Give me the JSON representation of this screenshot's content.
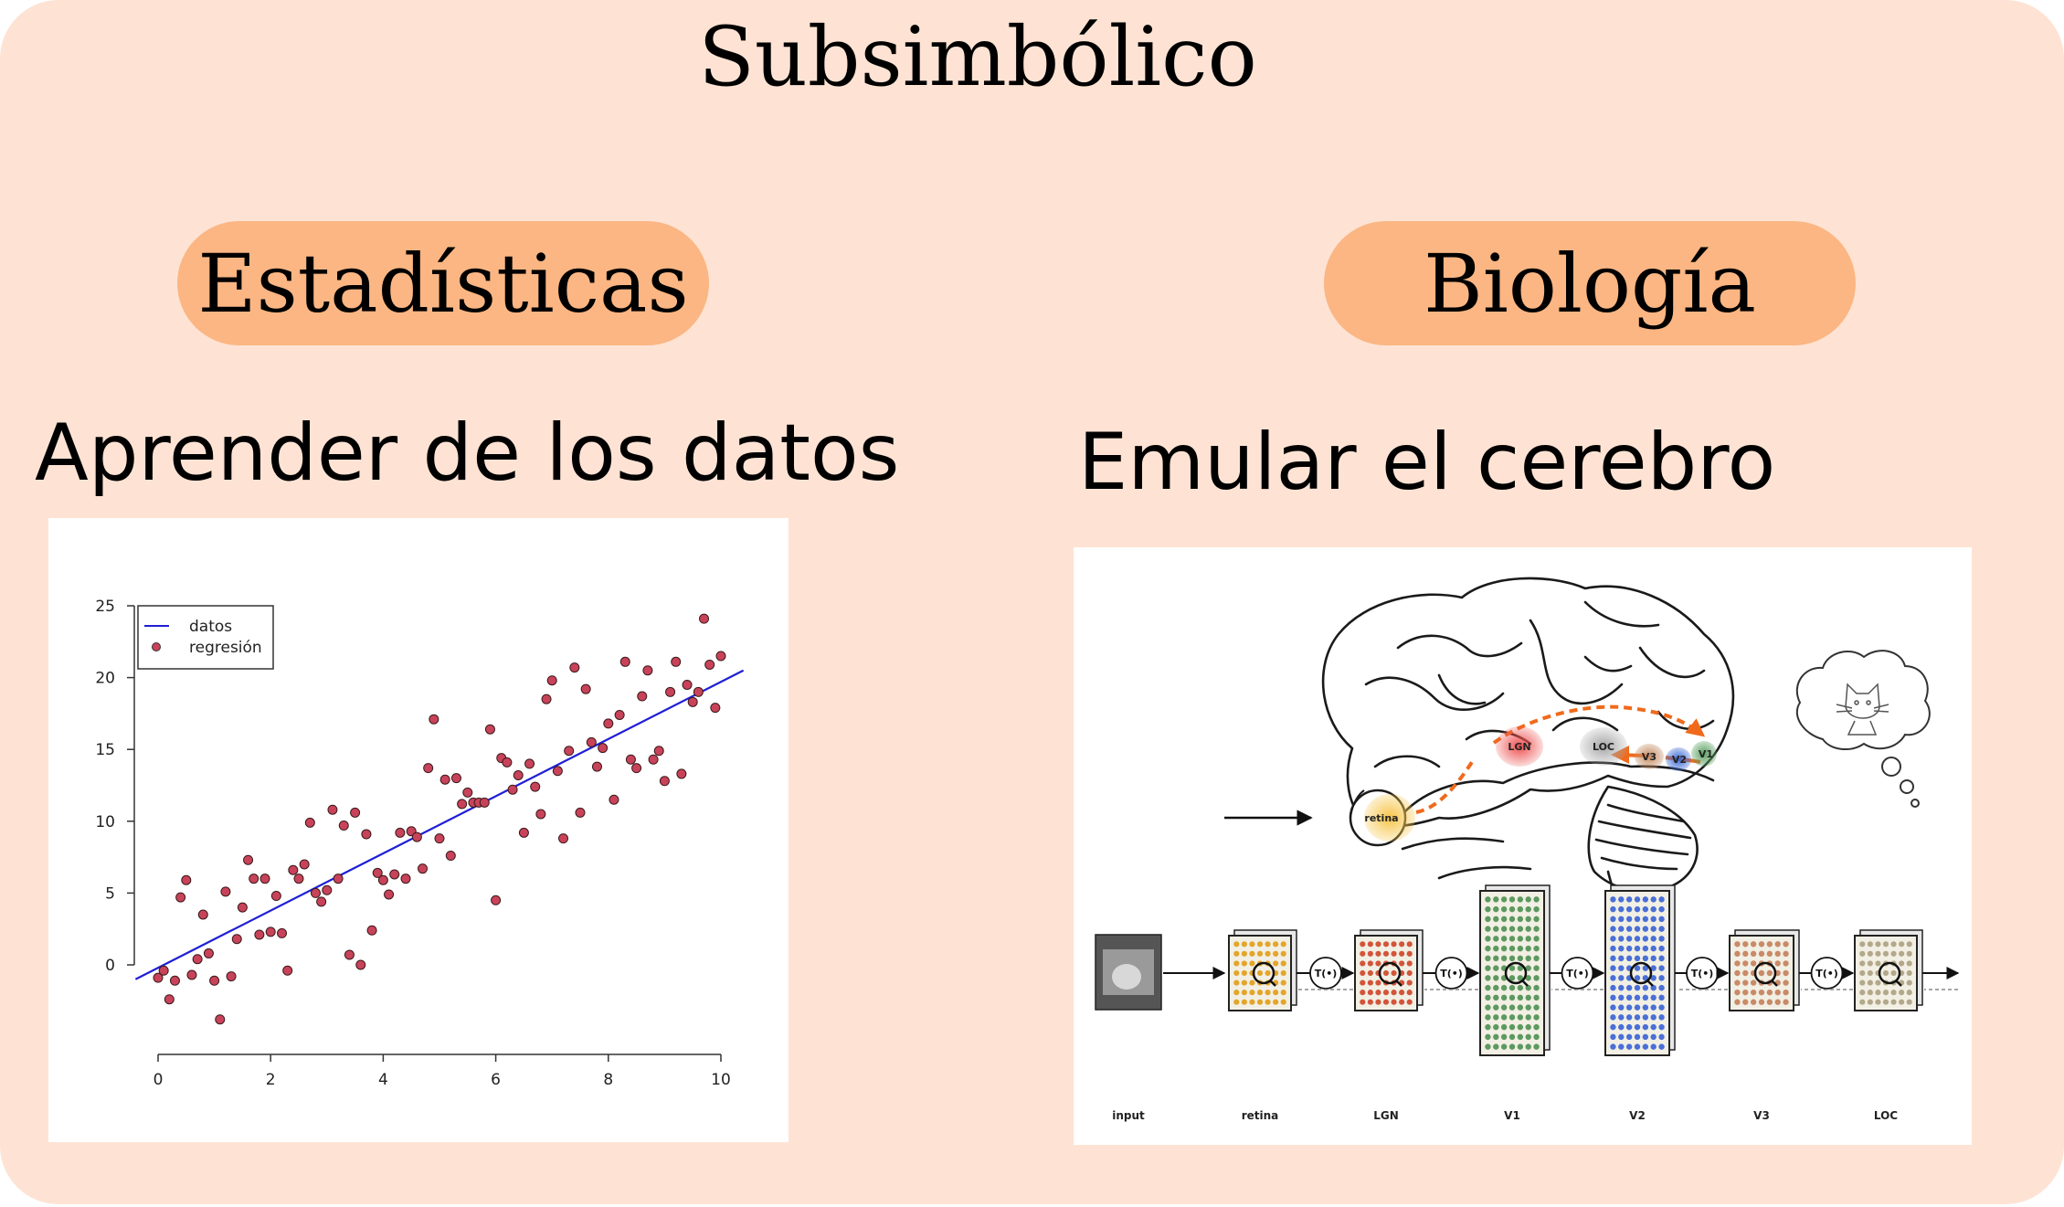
{
  "title": "Subsimbólico",
  "left": {
    "pill": "Estadísticas",
    "subtitle": "Aprender de los datos",
    "chart": {
      "legend": {
        "line": "datos",
        "points": "regresión"
      },
      "x_ticks": [
        "0",
        "2",
        "4",
        "6",
        "8",
        "10"
      ],
      "y_ticks": [
        "0",
        "5",
        "10",
        "15",
        "20",
        "25"
      ]
    }
  },
  "right": {
    "pill": "Biología",
    "subtitle": "Emular el cerebro",
    "brain_labels": [
      "retina",
      "LGN",
      "LOC",
      "V3",
      "V2",
      "V1"
    ],
    "op_label": "T(•)",
    "stage_labels": [
      "input",
      "retina",
      "LGN",
      "V1",
      "V2",
      "V3",
      "LOC"
    ]
  },
  "chart_data": {
    "type": "scatter",
    "xlim": [
      0,
      10
    ],
    "ylim": [
      -4,
      25
    ],
    "x_ticks": [
      0,
      2,
      4,
      6,
      8,
      10
    ],
    "y_ticks": [
      0,
      5,
      10,
      15,
      20,
      25
    ],
    "line": {
      "name": "datos",
      "x": [
        -0.4,
        10.4
      ],
      "y": [
        -1.0,
        20.5
      ],
      "color": "#1f1fd6"
    },
    "points": {
      "name": "regresión",
      "color": "#c8435a",
      "x": [
        0.0,
        0.1,
        0.2,
        0.3,
        0.4,
        0.5,
        0.6,
        0.7,
        0.8,
        0.9,
        1.0,
        1.1,
        1.2,
        1.3,
        1.4,
        1.5,
        1.6,
        1.7,
        1.8,
        1.9,
        2.0,
        2.1,
        2.2,
        2.3,
        2.4,
        2.5,
        2.6,
        2.7,
        2.8,
        2.9,
        3.0,
        3.1,
        3.2,
        3.3,
        3.4,
        3.5,
        3.6,
        3.7,
        3.8,
        3.9,
        4.0,
        4.1,
        4.2,
        4.3,
        4.4,
        4.5,
        4.6,
        4.7,
        4.8,
        4.9,
        5.0,
        5.1,
        5.2,
        5.3,
        5.4,
        5.5,
        5.6,
        5.7,
        5.8,
        5.9,
        6.0,
        6.1,
        6.2,
        6.3,
        6.4,
        6.5,
        6.6,
        6.7,
        6.8,
        6.9,
        7.0,
        7.1,
        7.2,
        7.3,
        7.4,
        7.5,
        7.6,
        7.7,
        7.8,
        7.9,
        8.0,
        8.1,
        8.2,
        8.3,
        8.4,
        8.5,
        8.6,
        8.7,
        8.8,
        8.9,
        9.0,
        9.1,
        9.2,
        9.3,
        9.4,
        9.5,
        9.6,
        9.7,
        9.8,
        9.9,
        10.0
      ],
      "y": [
        -0.9,
        -0.4,
        -2.4,
        -1.1,
        4.7,
        5.9,
        -0.7,
        0.4,
        3.5,
        0.8,
        -1.1,
        -3.8,
        5.1,
        -0.8,
        1.8,
        4.0,
        7.3,
        6.0,
        2.1,
        6.0,
        2.3,
        4.8,
        2.2,
        -0.4,
        6.6,
        6.0,
        7.0,
        9.9,
        5.0,
        4.4,
        5.2,
        10.8,
        6.0,
        9.7,
        0.7,
        10.6,
        0.0,
        9.1,
        2.4,
        6.4,
        5.9,
        4.9,
        6.3,
        9.2,
        6.0,
        9.3,
        8.9,
        6.7,
        13.7,
        17.1,
        8.8,
        12.9,
        7.6,
        13.0,
        11.2,
        12.0,
        11.3,
        11.3,
        11.3,
        16.4,
        4.5,
        14.4,
        14.1,
        12.2,
        13.2,
        9.2,
        14.0,
        12.4,
        10.5,
        18.5,
        19.8,
        13.5,
        8.8,
        14.9,
        20.7,
        10.6,
        19.2,
        15.5,
        13.8,
        15.1,
        16.8,
        11.5,
        17.4,
        21.1,
        14.3,
        13.7,
        18.7,
        20.5,
        14.3,
        14.9,
        12.8,
        19.0,
        21.1,
        13.3,
        19.5,
        18.3,
        19.0,
        24.1,
        20.9,
        17.9,
        21.5
      ]
    }
  }
}
